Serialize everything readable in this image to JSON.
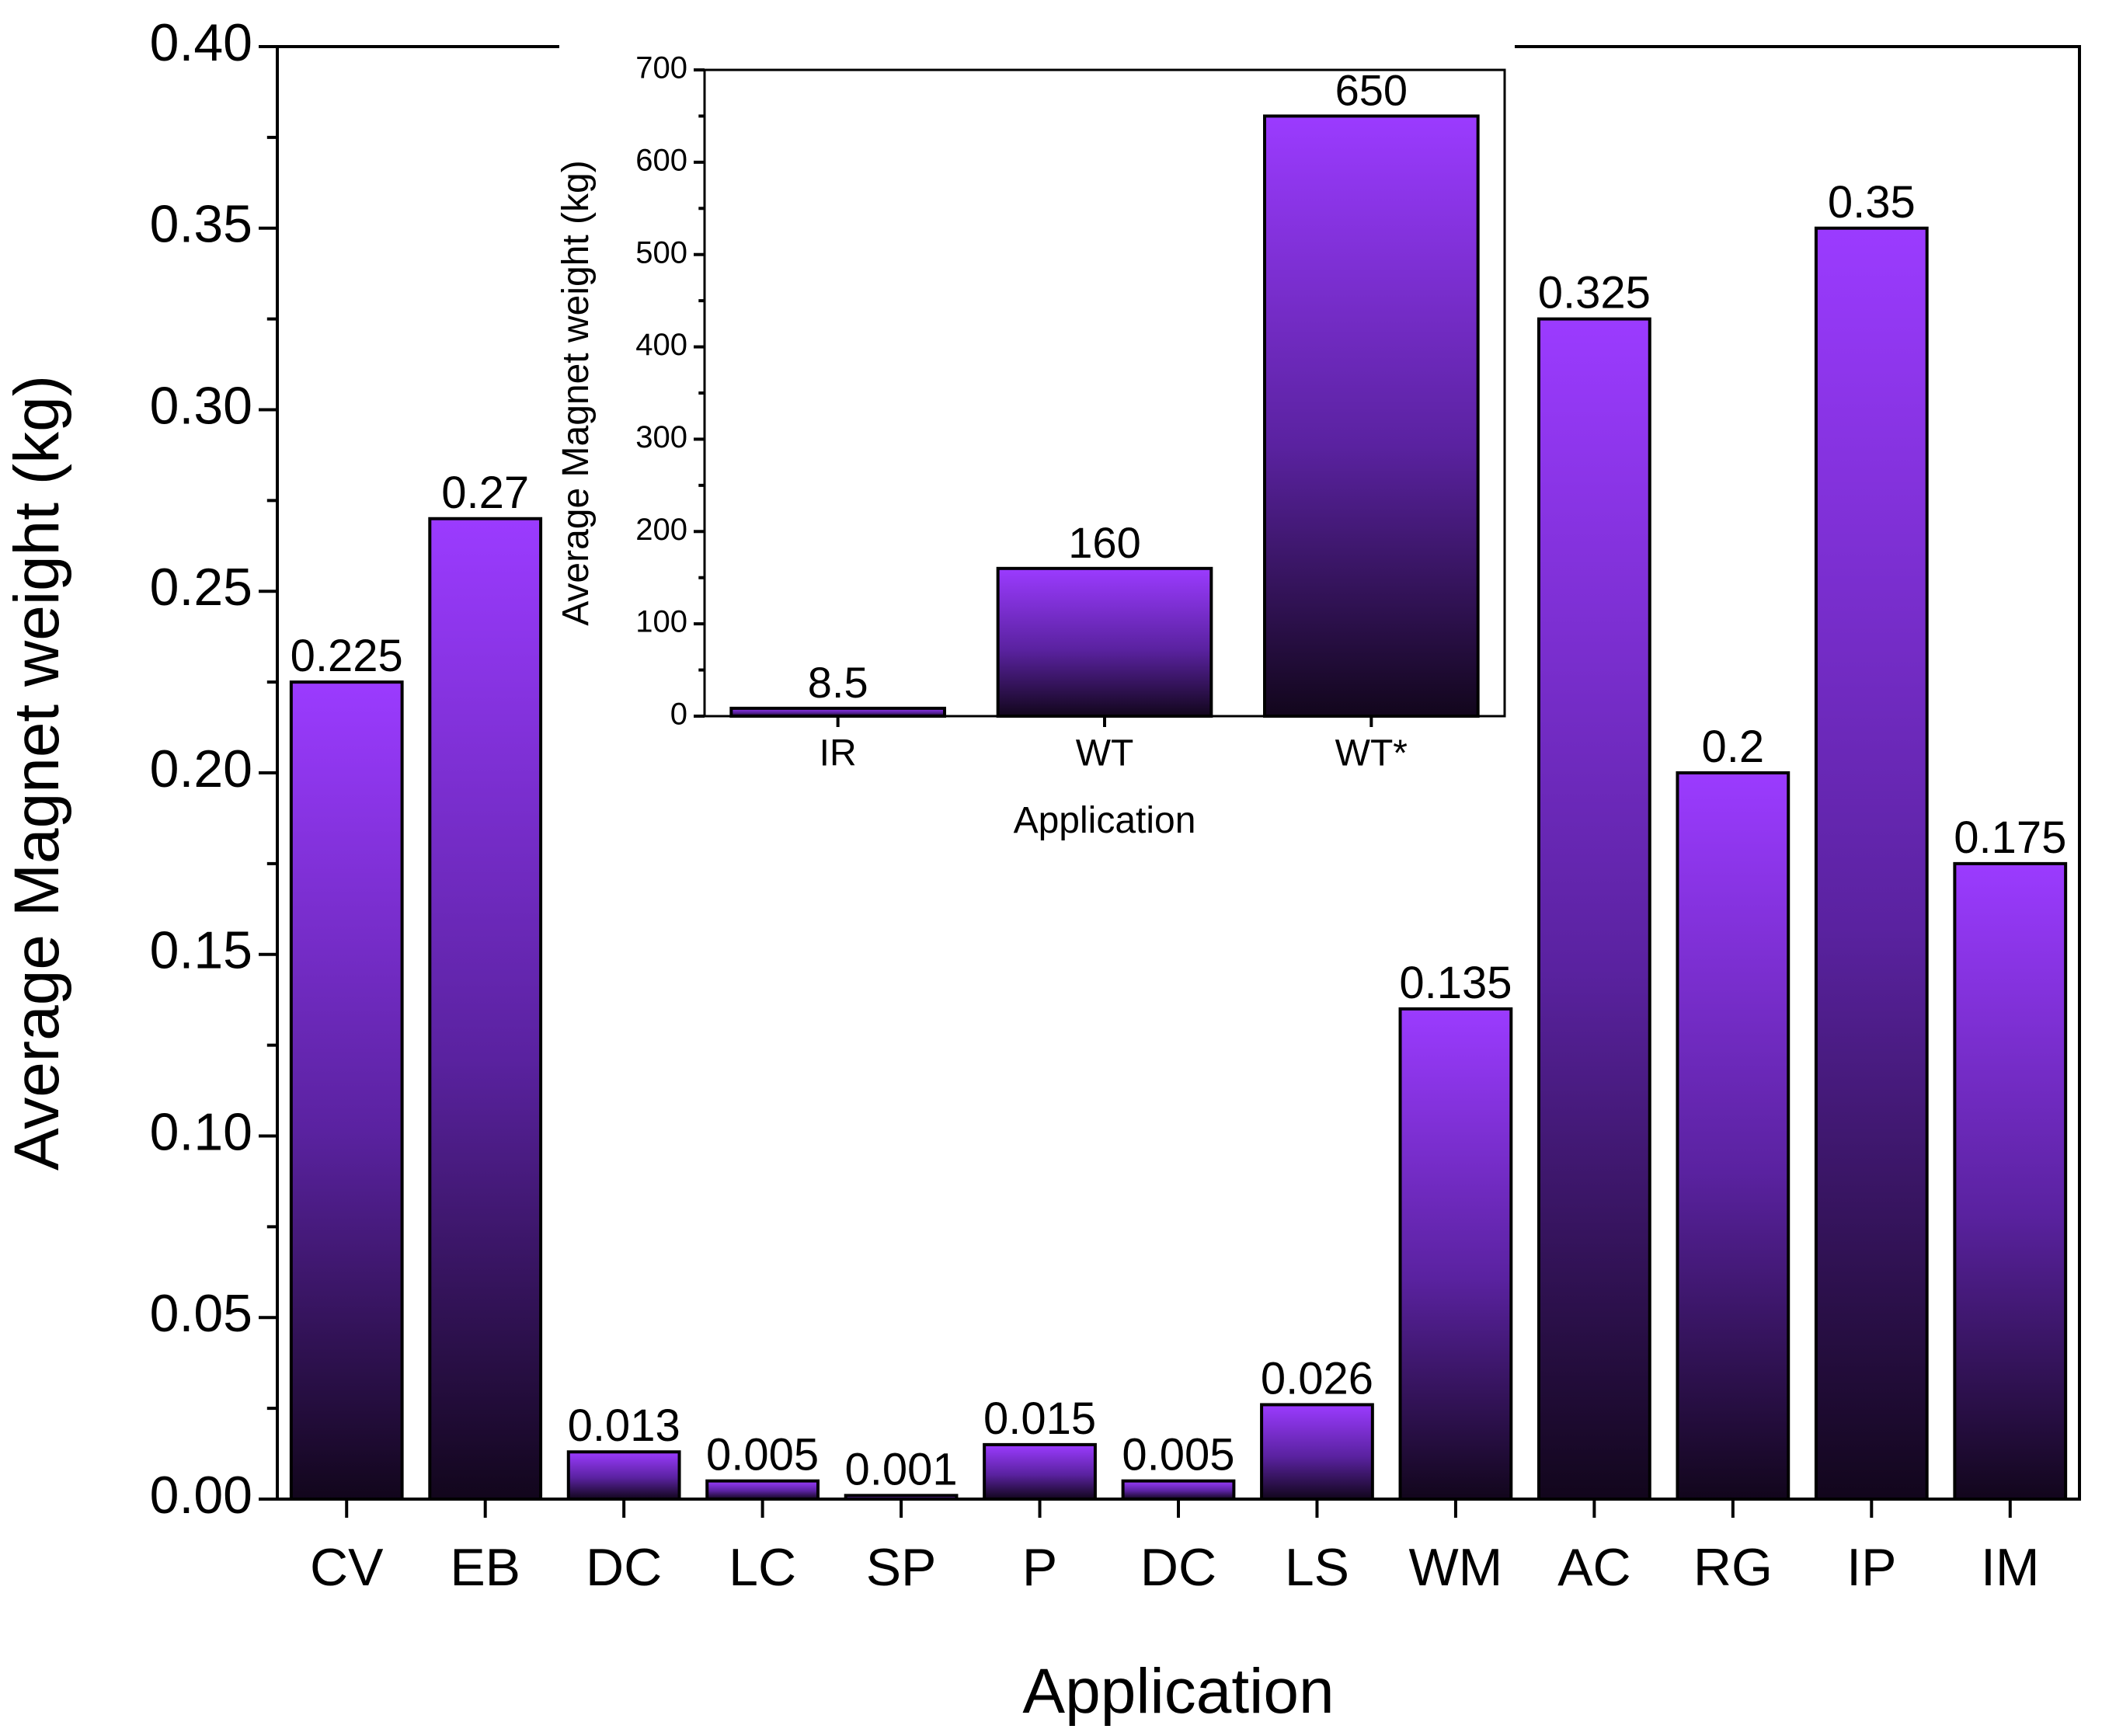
{
  "chart_data": [
    {
      "id": "main",
      "type": "bar",
      "title": "",
      "xlabel": "Application",
      "ylabel": "Average Magnet weight (kg)",
      "categories": [
        "CV",
        "EB",
        "DC",
        "LC",
        "SP",
        "P",
        "DC",
        "LS",
        "WM",
        "AC",
        "RG",
        "IP",
        "IM"
      ],
      "values": [
        0.225,
        0.27,
        0.013,
        0.005,
        0.001,
        0.015,
        0.005,
        0.026,
        0.135,
        0.325,
        0.2,
        0.35,
        0.175
      ],
      "value_labels": [
        "0.225",
        "0.27",
        "0.013",
        "0.005",
        "0.001",
        "0.015",
        "0.005",
        "0.026",
        "0.135",
        "0.325",
        "0.2",
        "0.35",
        "0.175"
      ],
      "ylim": [
        0,
        0.4
      ],
      "yticks": [
        "0.00",
        "0.05",
        "0.10",
        "0.15",
        "0.20",
        "0.25",
        "0.30",
        "0.35",
        "0.40"
      ],
      "grid": false,
      "bar_color_top": "#9b3bff",
      "bar_color_bottom": "#12061c"
    },
    {
      "id": "inset",
      "type": "bar",
      "title": "",
      "xlabel": "Application",
      "ylabel": "Average Magnet weight (kg)",
      "categories": [
        "IR",
        "WT",
        "WT*"
      ],
      "values": [
        8.5,
        160,
        650
      ],
      "value_labels": [
        "8.5",
        "160",
        "650"
      ],
      "ylim": [
        0,
        700
      ],
      "yticks": [
        "0",
        "100",
        "200",
        "300",
        "400",
        "500",
        "600",
        "700"
      ],
      "grid": false,
      "bar_color_top": "#9b3bff",
      "bar_color_bottom": "#12061c"
    }
  ]
}
